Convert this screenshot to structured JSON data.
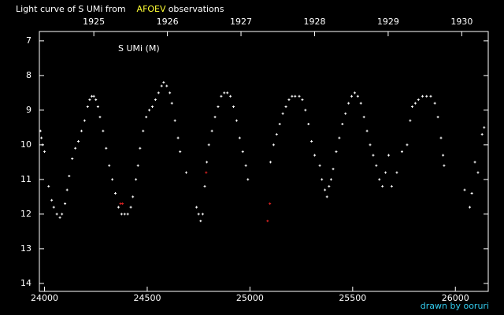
{
  "chart_data": {
    "type": "scatter",
    "title": "Light curve of S UMi from",
    "title_highlight": "AFOEV",
    "title_end": "observations",
    "annotation": "S UMi (M)",
    "credit": "drawn by ooruri",
    "xlim": [
      23975,
      26160
    ],
    "xticks": [
      24000,
      24500,
      25000,
      25500,
      26000
    ],
    "x2lim": [
      1924.26,
      1930.36
    ],
    "x2ticks": [
      1925,
      1926,
      1927,
      1928,
      1929,
      1930
    ],
    "ylim": [
      6.73,
      14.23
    ],
    "y_inverted": true,
    "yticks": [
      7,
      8,
      9,
      10,
      11,
      12,
      13,
      14
    ],
    "series": [
      {
        "color": "#ffffff",
        "x": [
          23980,
          23985,
          23990,
          24000,
          24020,
          24035,
          24045,
          24060,
          24075,
          24085,
          24100,
          24110,
          24120,
          24135,
          24150,
          24165,
          24180,
          24195,
          24210,
          24220,
          24230,
          24240,
          24250,
          24260,
          24270,
          24285,
          24300,
          24315,
          24330,
          24345,
          24360,
          24375,
          24390,
          24405,
          24420,
          24430,
          24445,
          24455,
          24465,
          24480,
          24495,
          24510,
          24525,
          24540,
          24555,
          24570,
          24580,
          24595,
          24610,
          24620,
          24635,
          24650,
          24660,
          24690,
          24740,
          24750,
          24760,
          24770,
          24780,
          24790,
          24800,
          24815,
          24830,
          24845,
          24860,
          24875,
          24890,
          24905,
          24920,
          24935,
          24950,
          24965,
          24980,
          24990,
          25100,
          25115,
          25130,
          25145,
          25160,
          25175,
          25190,
          25205,
          25220,
          25240,
          25255,
          25270,
          25285,
          25300,
          25315,
          25340,
          25350,
          25365,
          25375,
          25385,
          25395,
          25405,
          25420,
          25435,
          25450,
          25465,
          25480,
          25495,
          25510,
          25525,
          25540,
          25555,
          25570,
          25585,
          25600,
          25615,
          25630,
          25645,
          25660,
          25675,
          25690,
          25715,
          25740,
          25765,
          25780,
          25790,
          25805,
          25820,
          25840,
          25860,
          25880,
          25900,
          25915,
          25930,
          25940,
          25945,
          26045,
          26070,
          26080,
          26095,
          26110,
          26130,
          26140
        ],
        "values": [
          9.6,
          9.8,
          10.0,
          10.2,
          11.2,
          11.6,
          11.8,
          12.0,
          12.1,
          12.0,
          11.7,
          11.3,
          10.9,
          10.4,
          10.1,
          9.9,
          9.6,
          9.3,
          8.9,
          8.7,
          8.6,
          8.6,
          8.7,
          8.9,
          9.2,
          9.6,
          10.1,
          10.6,
          11.0,
          11.4,
          11.8,
          12.0,
          12.0,
          12.0,
          11.8,
          11.5,
          11.0,
          10.6,
          10.1,
          9.6,
          9.2,
          9.0,
          8.9,
          8.7,
          8.5,
          8.3,
          8.2,
          8.3,
          8.5,
          8.8,
          9.3,
          9.8,
          10.2,
          10.8,
          11.8,
          12.0,
          12.2,
          12.0,
          11.2,
          10.5,
          10.0,
          9.6,
          9.2,
          8.9,
          8.6,
          8.5,
          8.5,
          8.6,
          8.9,
          9.3,
          9.8,
          10.2,
          10.6,
          11.0,
          10.5,
          10.0,
          9.7,
          9.4,
          9.1,
          8.9,
          8.7,
          8.6,
          8.6,
          8.6,
          8.7,
          9.0,
          9.4,
          9.9,
          10.3,
          10.6,
          11.0,
          11.3,
          11.5,
          11.2,
          11.0,
          10.7,
          10.2,
          9.8,
          9.4,
          9.1,
          8.8,
          8.6,
          8.5,
          8.6,
          8.8,
          9.2,
          9.6,
          10.0,
          10.3,
          10.6,
          11.0,
          11.2,
          10.8,
          10.3,
          11.2,
          10.8,
          10.2,
          10.0,
          9.3,
          8.9,
          8.8,
          8.7,
          8.6,
          8.6,
          8.6,
          8.8,
          9.2,
          9.8,
          10.3,
          10.6,
          11.3,
          11.8,
          11.4,
          10.5,
          10.8,
          9.7,
          9.5
        ]
      },
      {
        "color": "#dd2222",
        "x": [
          24370,
          24380,
          24787,
          25086,
          25097
        ],
        "values": [
          11.7,
          11.7,
          10.8,
          12.2,
          11.7
        ]
      }
    ]
  }
}
